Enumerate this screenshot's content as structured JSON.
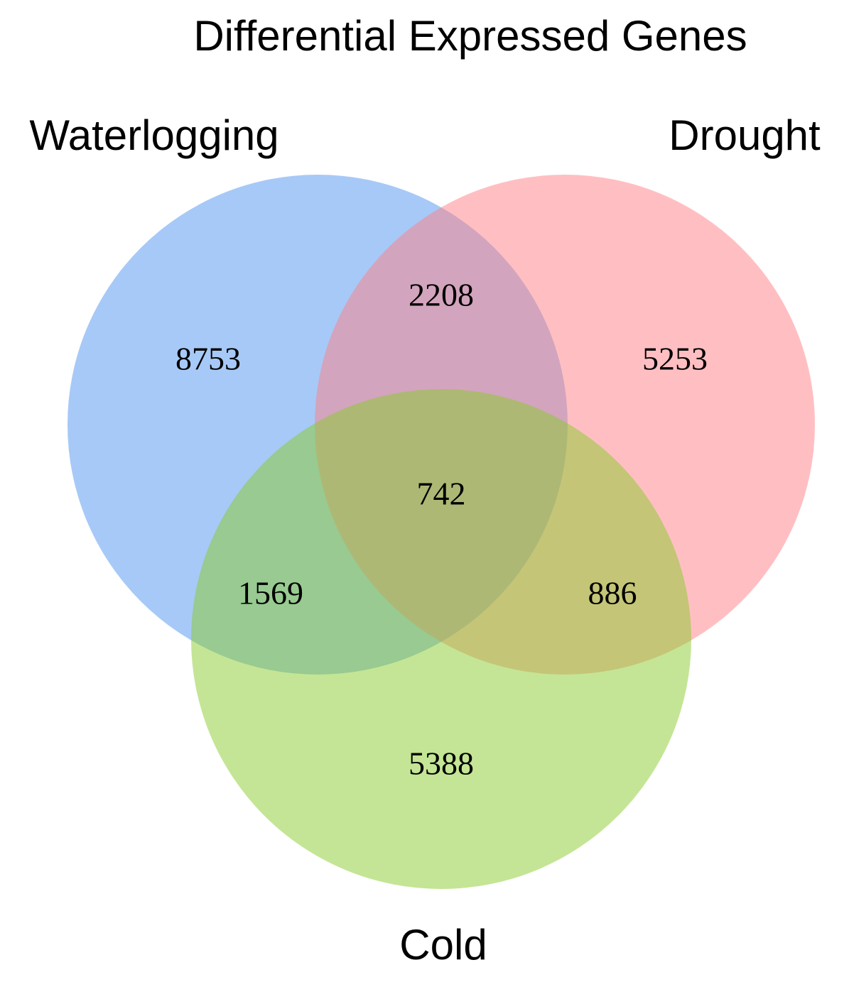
{
  "chart_data": {
    "type": "venn",
    "title": "Differential Expressed Genes",
    "sets": [
      {
        "name": "Waterlogging",
        "color": "#4f94ef"
      },
      {
        "name": "Drought",
        "color": "#ff7f85"
      },
      {
        "name": "Cold",
        "color": "#89cb2b"
      }
    ],
    "regions": [
      {
        "sets": [
          "Waterlogging"
        ],
        "value": 8753
      },
      {
        "sets": [
          "Drought"
        ],
        "value": 5253
      },
      {
        "sets": [
          "Cold"
        ],
        "value": 5388
      },
      {
        "sets": [
          "Waterlogging",
          "Drought"
        ],
        "value": 2208
      },
      {
        "sets": [
          "Waterlogging",
          "Cold"
        ],
        "value": 1569
      },
      {
        "sets": [
          "Drought",
          "Cold"
        ],
        "value": 886
      },
      {
        "sets": [
          "Waterlogging",
          "Drought",
          "Cold"
        ],
        "value": 742
      }
    ]
  }
}
